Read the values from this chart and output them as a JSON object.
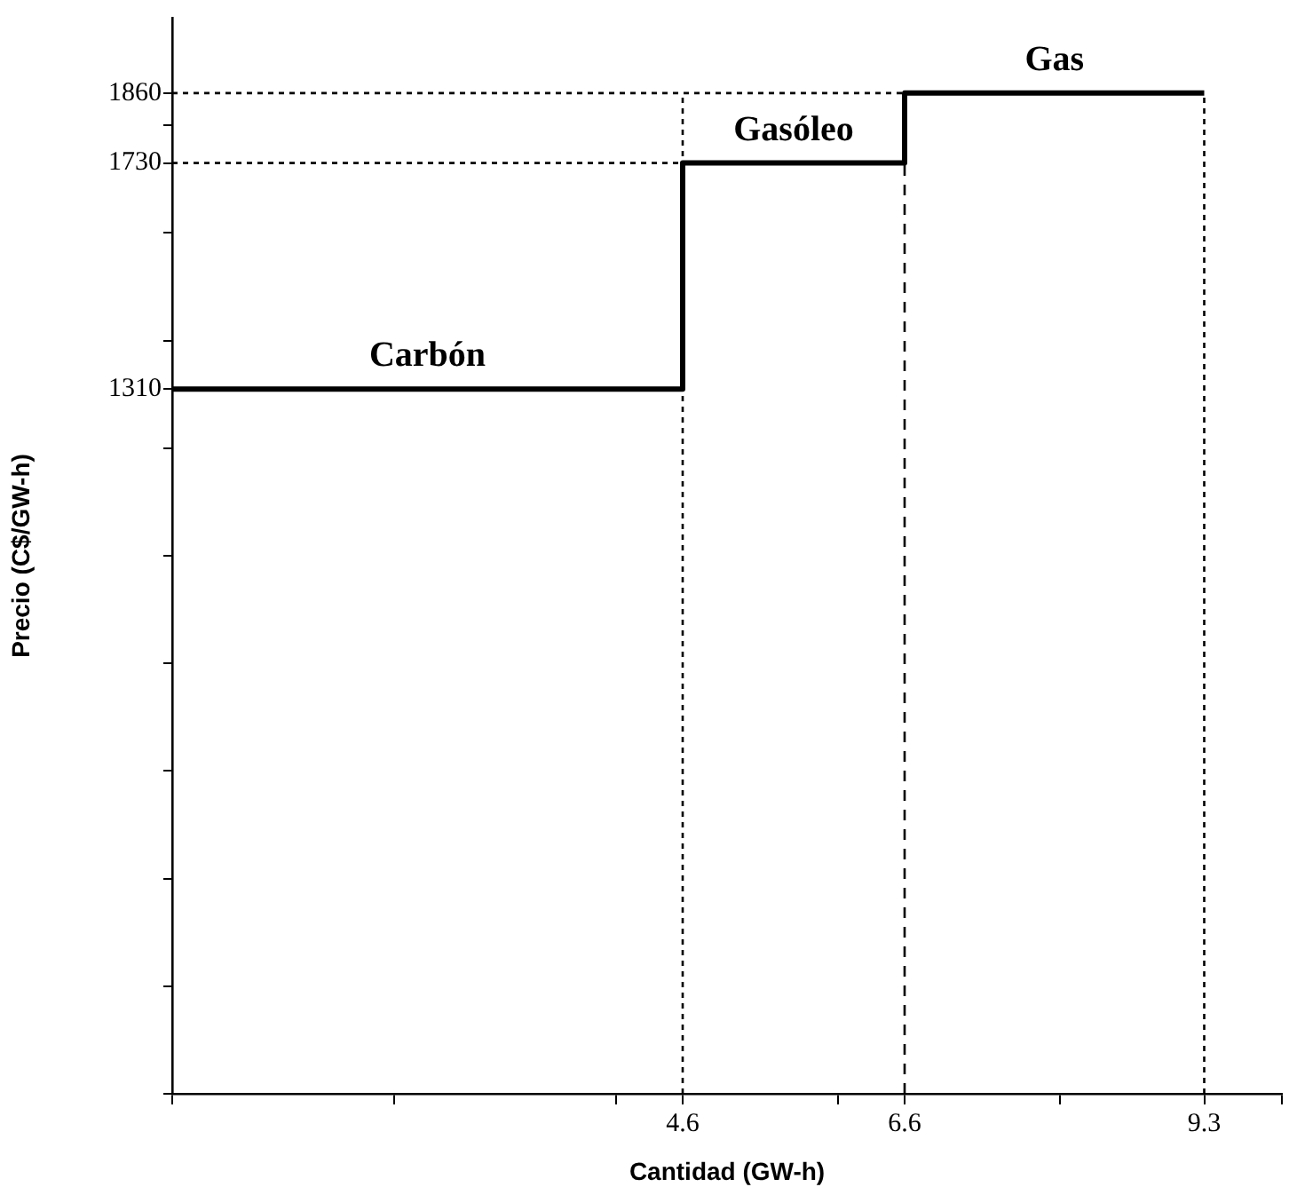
{
  "chart_data": {
    "type": "step",
    "xlabel": "Cantidad (GW-h)",
    "ylabel": "Precio (C$/GW-h)",
    "x": [
      0,
      4.6,
      6.6,
      9.3
    ],
    "series": [
      {
        "color": "#000000",
        "values": [
          1310,
          1730,
          1860,
          1860
        ]
      }
    ],
    "xlim": [
      0,
      10
    ],
    "xticks": [
      {
        "value": 0,
        "label": null
      },
      {
        "value": 2,
        "label": null
      },
      {
        "value": 4,
        "label": null
      },
      4.6,
      {
        "value": 6,
        "label": null
      },
      6.6,
      {
        "value": 8,
        "label": null
      },
      9.3,
      {
        "value": 10,
        "label": null
      }
    ],
    "ylim": [
      0,
      2000
    ],
    "yticks": [
      {
        "value": 0,
        "label": null
      },
      {
        "value": 200,
        "label": null
      },
      {
        "value": 400,
        "label": null
      },
      {
        "value": 600,
        "label": null
      },
      {
        "value": 800,
        "label": null
      },
      {
        "value": 1000,
        "label": null
      },
      {
        "value": 1200,
        "label": null
      },
      1310,
      {
        "value": 1400,
        "label": null
      },
      {
        "value": 1600,
        "label": null
      },
      1730,
      {
        "value": 1800,
        "label": null
      },
      1860
    ],
    "ref_lines": [
      {
        "axis": "y",
        "value": 1860,
        "line_style": "dotted"
      },
      {
        "axis": "y",
        "value": 1730,
        "line_style": "dotted"
      },
      {
        "axis": "x",
        "value": 4.6,
        "line_style": "dotted"
      },
      {
        "axis": "x",
        "value": 6.6,
        "line_style": "dashed"
      },
      {
        "axis": "x",
        "value": 9.3,
        "line_style": "dotted"
      }
    ],
    "annotations": [
      {
        "text": "Carbón",
        "x": 2.3,
        "y": 1310
      },
      {
        "text": "Gasóleo",
        "x": 5.6,
        "y": 1730
      },
      {
        "text": "Gas",
        "x": 7.95,
        "y": 1860
      }
    ],
    "grid": false,
    "legend": false,
    "marker": "none",
    "line_style": "solid"
  }
}
